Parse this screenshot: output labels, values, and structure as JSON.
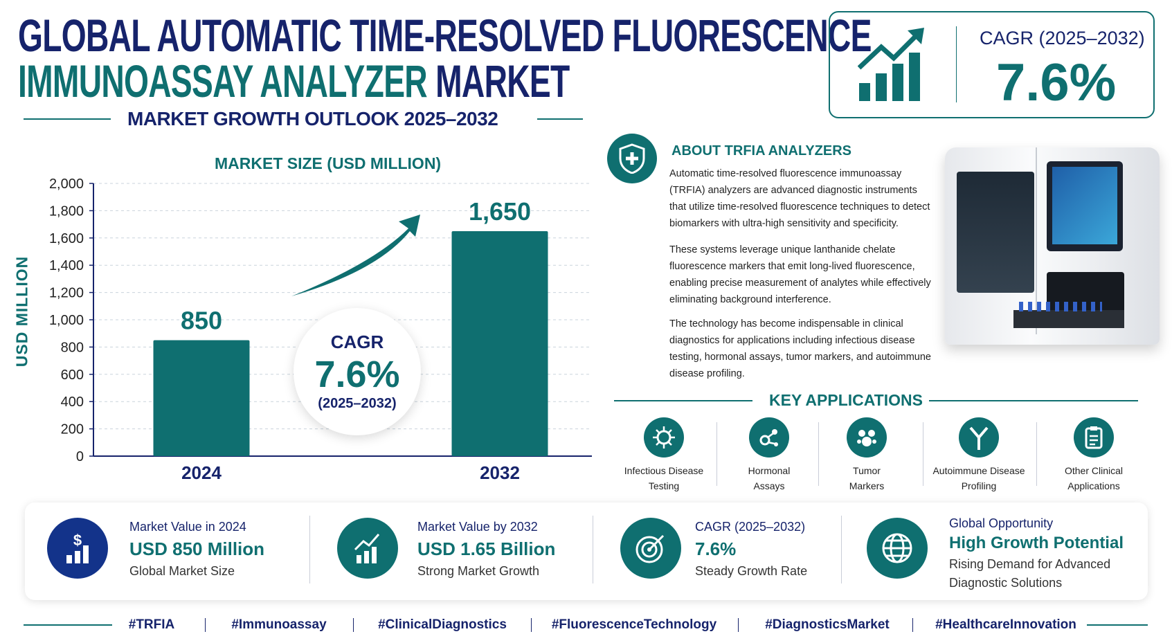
{
  "header": {
    "title_line1": "GLOBAL AUTOMATIC TIME-RESOLVED FLUORESCENCE",
    "title_line2_a": "IMMUNOASSAY ANALYZER",
    "title_line2_b": "MARKET",
    "subtitle": "MARKET GROWTH OUTLOOK 2025–2032"
  },
  "cagr_box": {
    "label": "CAGR (2025–2032)",
    "value": "7.6%",
    "icon": "growth-chart-icon"
  },
  "chart_data": {
    "type": "bar",
    "title": "MARKET SIZE (USD MILLION)",
    "ylabel": "USD MILLION",
    "xlabel": "",
    "categories": [
      "2024",
      "2032"
    ],
    "values": [
      850,
      1650
    ],
    "data_labels": [
      "850",
      "1,650"
    ],
    "ylim": [
      0,
      2000
    ],
    "yticks": [
      "0",
      "200",
      "400",
      "600",
      "800",
      "1,000",
      "1,200",
      "1,400",
      "1,600",
      "1,800",
      "2,000"
    ],
    "grid": true,
    "bar_color": "#0f6f70"
  },
  "cagr_circle": {
    "label": "CAGR",
    "value": "7.6%",
    "period": "(2025–2032)"
  },
  "about": {
    "title": "ABOUT TRFIA ANALYZERS",
    "icon": "shield-plus-icon",
    "paragraphs": [
      "Automatic time-resolved fluorescence immunoassay (TRFIA) analyzers are advanced diagnostic instruments that utilize time-resolved fluorescence techniques to detect biomarkers with ultra-high sensitivity and specificity.",
      "These systems leverage unique lanthanide chelate fluorescence markers that emit long-lived fluorescence, enabling precise measurement of analytes while effectively eliminating background interference.",
      "The technology has become indispensable in clinical diagnostics for applications including infectious disease testing, hormonal assays, tumor markers, and autoimmune disease profiling."
    ]
  },
  "applications": {
    "title": "KEY APPLICATIONS",
    "items": [
      {
        "l1": "Infectious Disease",
        "l2": "Testing",
        "icon": "virus-icon"
      },
      {
        "l1": "Hormonal",
        "l2": "Assays",
        "icon": "molecule-icon"
      },
      {
        "l1": "Tumor",
        "l2": "Markers",
        "icon": "cells-icon"
      },
      {
        "l1": "Autoimmune Disease",
        "l2": "Profiling",
        "icon": "antibody-icon"
      },
      {
        "l1": "Other Clinical",
        "l2": "Applications",
        "icon": "clipboard-icon"
      }
    ]
  },
  "stats": [
    {
      "l1": "Market Value in 2024",
      "l2": "USD 850 Million",
      "l3": "Global Market Size",
      "icon": "dollar-chart-icon",
      "color": "#13338a"
    },
    {
      "l1": "Market Value by 2032",
      "l2": "USD 1.65 Billion",
      "l3": "Strong Market Growth",
      "icon": "growth-chart-icon",
      "color": "#0f6f70"
    },
    {
      "l1": "CAGR (2025–2032)",
      "l2": "7.6%",
      "l3": "Steady Growth Rate",
      "icon": "target-icon",
      "color": "#0f6f70"
    },
    {
      "l1": "Global Opportunity",
      "l2": "High Growth Potential",
      "l3": "Rising Demand for Advanced",
      "l4": "Diagnostic Solutions",
      "icon": "globe-icon",
      "color": "#0f6f70"
    }
  ],
  "hashtags": [
    "#TRFIA",
    "#Immunoassay",
    "#ClinicalDiagnostics",
    "#FluorescenceTechnology",
    "#DiagnosticsMarket",
    "#HealthcareInnovation"
  ],
  "colors": {
    "navy": "#16236b",
    "teal": "#0f6f70"
  }
}
